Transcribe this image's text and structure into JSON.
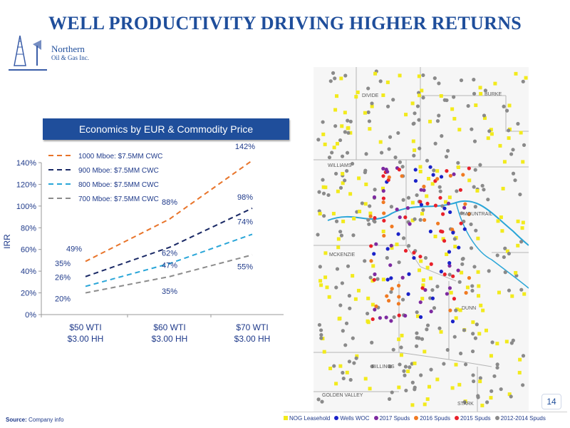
{
  "page": {
    "title": "WELL PRODUCTIVITY DRIVING HIGHER RETURNS",
    "logo_text": [
      "Northern",
      "Oil & Gas Inc."
    ],
    "chart_header": "Economics by EUR & Commodity Price",
    "page_number": "14",
    "source_label": "Source:",
    "source_text": "Company info"
  },
  "chart_data": {
    "type": "line",
    "title": "Economics by EUR & Commodity Price",
    "ylabel": "IRR",
    "xlabel": "",
    "categories": [
      "$50 WTI\n$3.00 HH",
      "$60 WTI\n$3.00 HH",
      "$70 WTI\n$3.00 HH"
    ],
    "ylim": [
      0,
      140
    ],
    "yticks": [
      0,
      20,
      40,
      60,
      80,
      100,
      120,
      140
    ],
    "ytick_labels": [
      "0%",
      "20%",
      "40%",
      "60%",
      "80%",
      "100%",
      "120%",
      "140%"
    ],
    "legend_position": "top-left",
    "grid": false,
    "series": [
      {
        "name": "1000 Mboe: $7.5MM CWC",
        "color": "#e8742a",
        "values": [
          49,
          88,
          142
        ],
        "labels": [
          "49%",
          "88%",
          "142%"
        ]
      },
      {
        "name": "900 Mboe: $7.5MM CWC",
        "color": "#1b2a66",
        "values": [
          35,
          62,
          98
        ],
        "labels": [
          "35%",
          "62%",
          "98%"
        ]
      },
      {
        "name": "800 Mboe: $7.5MM CWC",
        "color": "#2aa6d8",
        "values": [
          26,
          47,
          74
        ],
        "labels": [
          "26%",
          "47%",
          "74%"
        ]
      },
      {
        "name": "700 Mboe: $7.5MM CWC",
        "color": "#8c8c8c",
        "values": [
          20,
          35,
          55
        ],
        "labels": [
          "20%",
          "35%",
          "55%"
        ]
      }
    ]
  },
  "map": {
    "county_labels": [
      "DIVIDE",
      "BURKE",
      "WILLIAMS",
      "MOUNTRAIL",
      "MCKENZIE",
      "DUNN",
      "BILLINGS",
      "GOLDEN VALLEY",
      "STARK"
    ],
    "legend": [
      {
        "label": "NOG Leasehold",
        "color": "#f2ea1c",
        "shape": "square"
      },
      {
        "label": "Wells WOC",
        "color": "#1a22c8",
        "shape": "dot"
      },
      {
        "label": "2017 Spuds",
        "color": "#7d2aa0",
        "shape": "dot"
      },
      {
        "label": "2016 Spuds",
        "color": "#f07a22",
        "shape": "dot"
      },
      {
        "label": "2015 Spuds",
        "color": "#e8202a",
        "shape": "dot"
      },
      {
        "label": "2012-2014 Spuds",
        "color": "#8a8a8a",
        "shape": "dot"
      }
    ]
  }
}
